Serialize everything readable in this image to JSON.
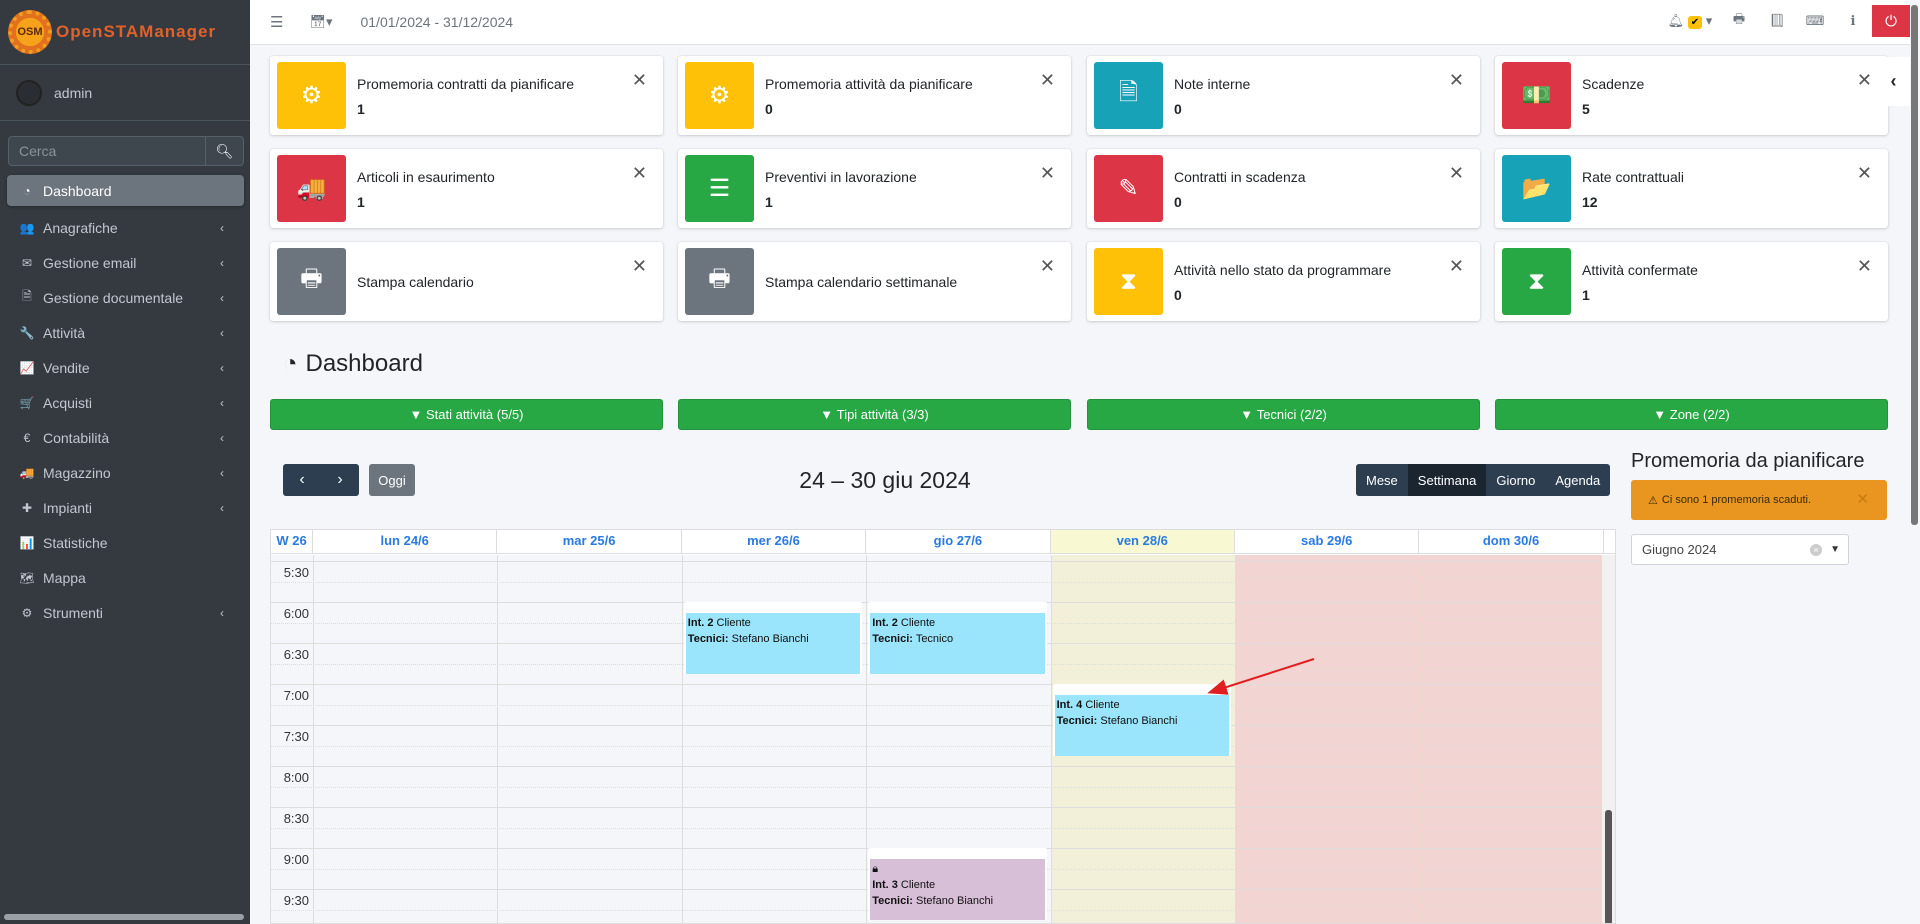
{
  "brand": {
    "logo_mark": "OSM",
    "name": "OpenSTAManager"
  },
  "user": {
    "name": "admin"
  },
  "search": {
    "placeholder": "Cerca"
  },
  "sidebar": {
    "items": [
      {
        "label": "Dashboard",
        "icon": "dashboard-icon",
        "glyph": "◔",
        "active": true,
        "chev": false
      },
      {
        "label": "Anagrafiche",
        "icon": "users-icon",
        "glyph": "👥",
        "chev": true
      },
      {
        "label": "Gestione email",
        "icon": "envelope-icon",
        "glyph": "✉",
        "chev": true
      },
      {
        "label": "Gestione documentale",
        "icon": "file-icon",
        "glyph": "🗎",
        "chev": true
      },
      {
        "label": "Attività",
        "icon": "wrench-icon",
        "glyph": "🔧",
        "chev": true
      },
      {
        "label": "Vendite",
        "icon": "line-chart-icon",
        "glyph": "📈",
        "chev": true
      },
      {
        "label": "Acquisti",
        "icon": "cart-icon",
        "glyph": "🛒",
        "chev": true
      },
      {
        "label": "Contabilità",
        "icon": "euro-icon",
        "glyph": "€",
        "chev": true
      },
      {
        "label": "Magazzino",
        "icon": "truck-icon",
        "glyph": "🚚",
        "chev": true
      },
      {
        "label": "Impianti",
        "icon": "puzzle-icon",
        "glyph": "✚",
        "chev": true
      },
      {
        "label": "Statistiche",
        "icon": "bar-chart-icon",
        "glyph": "📊",
        "chev": false
      },
      {
        "label": "Mappa",
        "icon": "map-icon",
        "glyph": "🗺",
        "chev": false
      },
      {
        "label": "Strumenti",
        "icon": "cog-icon",
        "glyph": "⚙",
        "chev": true
      }
    ]
  },
  "topbar": {
    "date_range": "01/01/2024 - 31/12/2024",
    "notifications_badge": "✔"
  },
  "cards": [
    {
      "title": "Promemoria contratti da pianificare",
      "value": "1",
      "color": "#ffc107",
      "icon": "cog-icon",
      "glyph": "⚙"
    },
    {
      "title": "Promemoria attività da pianificare",
      "value": "0",
      "color": "#ffc107",
      "icon": "cogs-icon",
      "glyph": "⚙"
    },
    {
      "title": "Note interne",
      "value": "0",
      "color": "#17a2b8",
      "icon": "file-text-icon",
      "glyph": "🗎"
    },
    {
      "title": "Scadenze",
      "value": "5",
      "color": "#dc3545",
      "icon": "money-icon",
      "glyph": "💵"
    },
    {
      "title": "Articoli in esaurimento",
      "value": "1",
      "color": "#dc3545",
      "icon": "truck-icon",
      "glyph": "🚚"
    },
    {
      "title": "Preventivi in lavorazione",
      "value": "1",
      "color": "#28a745",
      "icon": "server-icon",
      "glyph": "☰"
    },
    {
      "title": "Contratti in scadenza",
      "value": "0",
      "color": "#dc3545",
      "icon": "edit-icon",
      "glyph": "✎"
    },
    {
      "title": "Rate contrattuali",
      "value": "12",
      "color": "#17a2b8",
      "icon": "folder-open-icon",
      "glyph": "📂"
    },
    {
      "title": "Stampa calendario",
      "value": "",
      "color": "#6c757d",
      "icon": "print-icon",
      "glyph": "🖶"
    },
    {
      "title": "Stampa calendario settimanale",
      "value": "",
      "color": "#6c757d",
      "icon": "print-icon",
      "glyph": "🖶"
    },
    {
      "title": "Attività nello stato da programmare",
      "value": "0",
      "color": "#ffc107",
      "icon": "hourglass-icon",
      "glyph": "⧗"
    },
    {
      "title": "Attività confermate",
      "value": "1",
      "color": "#28a745",
      "icon": "hourglass-icon",
      "glyph": "⧗"
    }
  ],
  "page_title": "Dashboard",
  "filters": [
    "Stati attività (5/5)",
    "Tipi attività (3/3)",
    "Tecnici (2/2)",
    "Zone (2/2)"
  ],
  "calendar": {
    "title": "24 – 30 giu 2024",
    "today_label": "Oggi",
    "views": [
      {
        "label": "Mese"
      },
      {
        "label": "Settimana",
        "active": true
      },
      {
        "label": "Giorno"
      },
      {
        "label": "Agenda"
      }
    ],
    "week_label": "W 26",
    "days": [
      {
        "label": "lun 24/6",
        "type": "normal"
      },
      {
        "label": "mar 25/6",
        "type": "normal"
      },
      {
        "label": "mer 26/6",
        "type": "normal"
      },
      {
        "label": "gio 27/6",
        "type": "normal"
      },
      {
        "label": "ven 28/6",
        "type": "today"
      },
      {
        "label": "sab 29/6",
        "type": "weekend"
      },
      {
        "label": "dom 30/6",
        "type": "weekend"
      }
    ],
    "times": [
      "5:30",
      "6:00",
      "6:30",
      "7:00",
      "7:30",
      "8:00",
      "8:30",
      "9:00",
      "9:30"
    ],
    "colors": {
      "today": "#f3f0d9",
      "today_head": "#f8f8d2",
      "weekend": "#f2d4d2",
      "event_blue": "#9ae5fb",
      "event_purple": "#d8bfd8"
    },
    "events": [
      {
        "day": 2,
        "start": "6:00",
        "end": "7:00",
        "int": "Int. 2",
        "client": "Cliente",
        "tech_label": "Tecnici:",
        "tech": "Stefano Bianchi",
        "color": "#9ae5fb",
        "locked": false
      },
      {
        "day": 3,
        "start": "6:00",
        "end": "7:00",
        "int": "Int. 2",
        "client": "Cliente",
        "tech_label": "Tecnici:",
        "tech": "Tecnico",
        "color": "#9ae5fb",
        "locked": false
      },
      {
        "day": 4,
        "start": "7:00",
        "end": "8:00",
        "int": "Int. 4",
        "client": "Cliente",
        "tech_label": "Tecnici:",
        "tech": "Stefano Bianchi",
        "color": "#9ae5fb",
        "locked": false
      },
      {
        "day": 3,
        "start": "9:00",
        "end": "10:00",
        "int": "Int. 3",
        "client": "Cliente",
        "tech_label": "Tecnici:",
        "tech": "Stefano Bianchi",
        "color": "#d8bfd8",
        "locked": true
      }
    ]
  },
  "reminders": {
    "title": "Promemoria da pianificare",
    "alert": "Ci sono 1 promemoria scaduti.",
    "month_select": "Giugno 2024"
  },
  "annotation": {
    "color": "#e02020"
  }
}
